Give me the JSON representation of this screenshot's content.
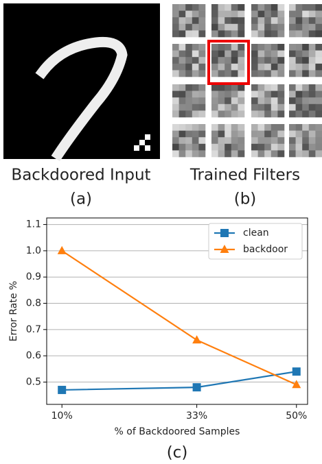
{
  "panels": {
    "a_caption": "Backdoored Input",
    "a_label": "(a)",
    "b_caption": "Trained Filters",
    "b_label": "(b)",
    "c_label": "(c)"
  },
  "chart_data": {
    "type": "line",
    "x": [
      10,
      33,
      50
    ],
    "xlim": [
      7.4,
      51.9
    ],
    "xticks": [
      {
        "value": 10,
        "label": "10%"
      },
      {
        "value": 33,
        "label": "33%"
      },
      {
        "value": 50,
        "label": "50%"
      }
    ],
    "ylim": [
      0.415,
      1.125
    ],
    "yticks": [
      0.5,
      0.6,
      0.7,
      0.8,
      0.9,
      {
        "value": 1,
        "label": "1.0"
      },
      1.1
    ],
    "x_label": "% of Backdoored Samples",
    "y_label": "Error Rate %",
    "grid": true,
    "legend": "upper right",
    "series": [
      {
        "name": "clean",
        "color": "#1f77b4",
        "marker": "square",
        "values": [
          0.47,
          0.48,
          0.54
        ]
      },
      {
        "name": "backdoor",
        "color": "#ff7f0e",
        "marker": "triangle",
        "values": [
          1.0,
          0.66,
          0.49
        ]
      }
    ]
  }
}
